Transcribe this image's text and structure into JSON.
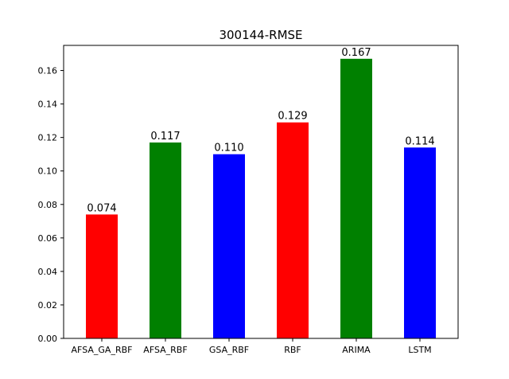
{
  "chart_data": {
    "type": "bar",
    "title": "300144-RMSE",
    "xlabel": "",
    "ylabel": "",
    "categories": [
      "AFSA_GA_RBF",
      "AFSA_RBF",
      "GSA_RBF",
      "RBF",
      "ARIMA",
      "LSTM"
    ],
    "values": [
      0.074,
      0.117,
      0.11,
      0.129,
      0.167,
      0.114
    ],
    "value_labels": [
      "0.074",
      "0.117",
      "0.110",
      "0.129",
      "0.167",
      "0.114"
    ],
    "bar_colors": [
      "#ff0000",
      "#008000",
      "#0000ff",
      "#ff0000",
      "#008000",
      "#0000ff"
    ],
    "ylim": [
      0,
      0.175
    ],
    "yticks": [
      0,
      0.02,
      0.04,
      0.06,
      0.08,
      0.1,
      0.12,
      0.14,
      0.16
    ],
    "ytick_labels": [
      "0.00",
      "0.02",
      "0.04",
      "0.06",
      "0.08",
      "0.10",
      "0.12",
      "0.14",
      "0.16"
    ],
    "grid": false,
    "legend": "none"
  }
}
